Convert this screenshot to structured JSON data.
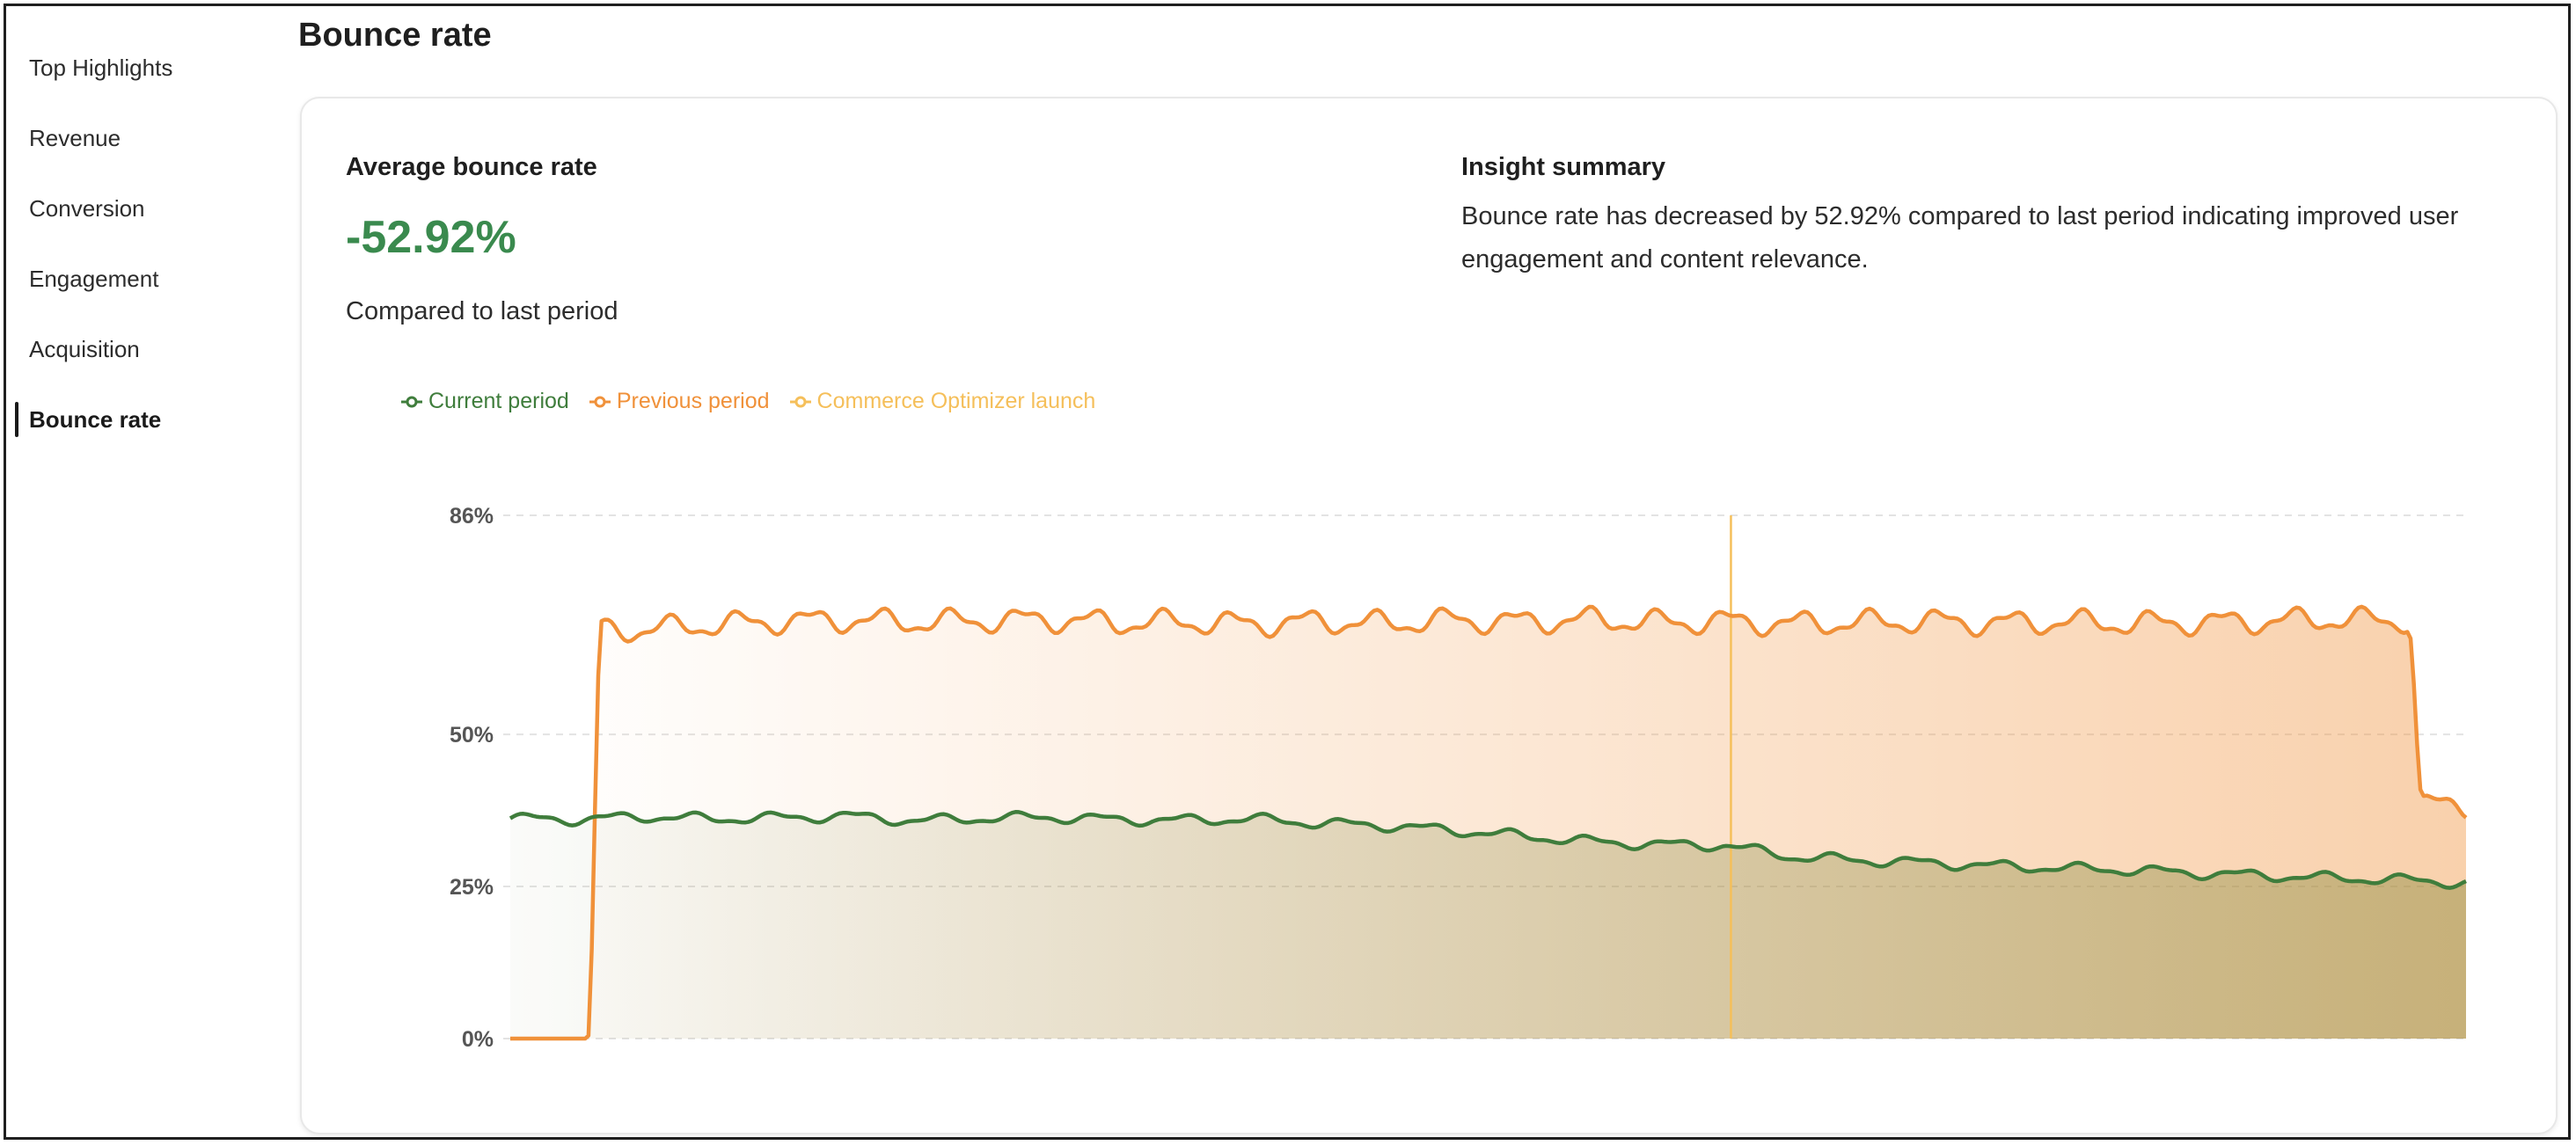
{
  "sidebar": {
    "items": [
      {
        "label": "Top Highlights",
        "active": false
      },
      {
        "label": "Revenue",
        "active": false
      },
      {
        "label": "Conversion",
        "active": false
      },
      {
        "label": "Engagement",
        "active": false
      },
      {
        "label": "Acquisition",
        "active": false
      },
      {
        "label": "Bounce rate",
        "active": true
      }
    ]
  },
  "page": {
    "title": "Bounce rate"
  },
  "card": {
    "metric_label": "Average bounce rate",
    "metric_value": "-52.92%",
    "metric_sub": "Compared to last period",
    "insight_title": "Insight summary",
    "insight_text": "Bounce rate has decreased by 52.92% compared to last period indicating improved user engagement and content relevance."
  },
  "colors": {
    "current": "#3f7d3c",
    "previous": "#f0913a",
    "launch": "#f5bf5a",
    "metric_green": "#3a8a4e"
  },
  "chart_data": {
    "type": "area",
    "legend": [
      {
        "name": "Current period",
        "color": "#3f7d3c"
      },
      {
        "name": "Previous period",
        "color": "#f0913a"
      },
      {
        "name": "Commerce Optimizer launch",
        "color": "#f5bf5a"
      }
    ],
    "y_ticks": [
      "0%",
      "25%",
      "50%",
      "86%"
    ],
    "y_tick_values": [
      0,
      25,
      50,
      86
    ],
    "ylim": [
      0,
      86
    ],
    "x_count": 30,
    "launch_index": 18.1,
    "series": [
      {
        "name": "Current period",
        "values": [
          36.2,
          36.0,
          36.5,
          36.1,
          36.3,
          36.6,
          35.8,
          36.2,
          36.4,
          36.0,
          35.9,
          36.1,
          35.4,
          35.0,
          34.2,
          33.3,
          32.4,
          31.9,
          31.8,
          29.9,
          29.3,
          28.9,
          28.4,
          28.0,
          27.7,
          27.2,
          26.8,
          26.4,
          26.1,
          25.6
        ],
        "ripple": 0.7
      },
      {
        "name": "Previous period",
        "values": [
          0,
          0,
          67.2,
          68.0,
          68.6,
          68.8,
          68.4,
          68.7,
          68.9,
          68.3,
          68.5,
          68.1,
          68.6,
          68.2,
          68.8,
          68.5,
          68.9,
          68.4,
          68.6,
          68.2,
          68.4,
          68.6,
          68.3,
          68.5,
          68.2,
          68.4,
          68.6,
          68.9,
          68.7,
          38.4
        ],
        "ripple": 1.6
      }
    ]
  }
}
